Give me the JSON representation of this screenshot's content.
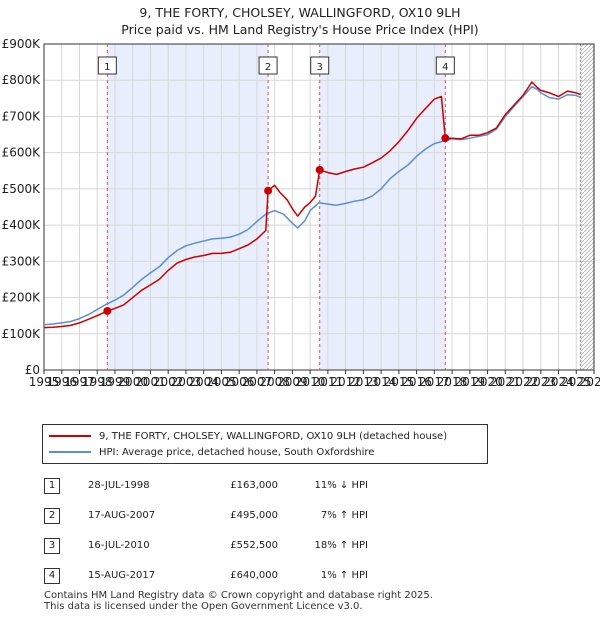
{
  "chart_data": {
    "type": "line",
    "title": "9, THE FORTY, CHOLSEY, WALLINGFORD, OX10 9LH",
    "subtitle": "Price paid vs. HM Land Registry's House Price Index (HPI)",
    "x_range": [
      1995,
      2026
    ],
    "y_range": [
      0,
      900000
    ],
    "y_ticks": [
      {
        "value": 0,
        "label": "£0"
      },
      {
        "value": 100000,
        "label": "£100K"
      },
      {
        "value": 200000,
        "label": "£200K"
      },
      {
        "value": 300000,
        "label": "£300K"
      },
      {
        "value": 400000,
        "label": "£400K"
      },
      {
        "value": 500000,
        "label": "£500K"
      },
      {
        "value": 600000,
        "label": "£600K"
      },
      {
        "value": 700000,
        "label": "£700K"
      },
      {
        "value": 800000,
        "label": "£800K"
      },
      {
        "value": 900000,
        "label": "£900K"
      }
    ],
    "x_ticks": [
      "1995",
      "1996",
      "1997",
      "1998",
      "1999",
      "2000",
      "2001",
      "2002",
      "2003",
      "2004",
      "2005",
      "2006",
      "2007",
      "2008",
      "2009",
      "2010",
      "2011",
      "2012",
      "2013",
      "2014",
      "2015",
      "2016",
      "2017",
      "2018",
      "2019",
      "2020",
      "2021",
      "2022",
      "2023",
      "2024",
      "2025",
      "2026"
    ],
    "grid": true,
    "shaded_ranges": [
      [
        1998.57,
        2007.63
      ],
      [
        2010.54,
        2017.62
      ]
    ],
    "data_end_year": 2025.25,
    "series": [
      {
        "name": "9, THE FORTY, CHOLSEY, WALLINGFORD, OX10 9LH (detached house)",
        "color": "#cc0000",
        "points": [
          [
            1995.0,
            117000
          ],
          [
            1995.5,
            118000
          ],
          [
            1996.0,
            120000
          ],
          [
            1996.5,
            123000
          ],
          [
            1997.0,
            130000
          ],
          [
            1997.5,
            140000
          ],
          [
            1998.0,
            150000
          ],
          [
            1998.57,
            163000
          ],
          [
            1999.0,
            170000
          ],
          [
            1999.5,
            180000
          ],
          [
            2000.0,
            200000
          ],
          [
            2000.5,
            220000
          ],
          [
            2001.0,
            235000
          ],
          [
            2001.5,
            250000
          ],
          [
            2002.0,
            275000
          ],
          [
            2002.5,
            295000
          ],
          [
            2003.0,
            305000
          ],
          [
            2003.5,
            312000
          ],
          [
            2004.0,
            316000
          ],
          [
            2004.5,
            322000
          ],
          [
            2005.0,
            322000
          ],
          [
            2005.5,
            325000
          ],
          [
            2006.0,
            335000
          ],
          [
            2006.5,
            345000
          ],
          [
            2007.0,
            362000
          ],
          [
            2007.5,
            385000
          ],
          [
            2007.63,
            495000
          ],
          [
            2008.0,
            510000
          ],
          [
            2008.3,
            490000
          ],
          [
            2008.7,
            470000
          ],
          [
            2009.0,
            445000
          ],
          [
            2009.3,
            425000
          ],
          [
            2009.7,
            450000
          ],
          [
            2010.0,
            462000
          ],
          [
            2010.3,
            480000
          ],
          [
            2010.54,
            552500
          ],
          [
            2011.0,
            545000
          ],
          [
            2011.5,
            540000
          ],
          [
            2012.0,
            548000
          ],
          [
            2012.5,
            555000
          ],
          [
            2013.0,
            560000
          ],
          [
            2013.5,
            572000
          ],
          [
            2014.0,
            585000
          ],
          [
            2014.5,
            605000
          ],
          [
            2015.0,
            630000
          ],
          [
            2015.5,
            660000
          ],
          [
            2016.0,
            695000
          ],
          [
            2016.5,
            722000
          ],
          [
            2017.0,
            748000
          ],
          [
            2017.4,
            755000
          ],
          [
            2017.62,
            640000
          ],
          [
            2018.0,
            640000
          ],
          [
            2018.5,
            638000
          ],
          [
            2019.0,
            648000
          ],
          [
            2019.5,
            648000
          ],
          [
            2020.0,
            655000
          ],
          [
            2020.5,
            668000
          ],
          [
            2021.0,
            705000
          ],
          [
            2021.5,
            732000
          ],
          [
            2022.0,
            758000
          ],
          [
            2022.5,
            795000
          ],
          [
            2022.8,
            780000
          ],
          [
            2023.0,
            772000
          ],
          [
            2023.5,
            765000
          ],
          [
            2024.0,
            755000
          ],
          [
            2024.5,
            770000
          ],
          [
            2025.0,
            765000
          ],
          [
            2025.25,
            760000
          ]
        ]
      },
      {
        "name": "HPI: Average price, detached house, South Oxfordshire",
        "color": "#5b8fd0",
        "points": [
          [
            1995.0,
            125000
          ],
          [
            1995.5,
            127000
          ],
          [
            1996.0,
            130000
          ],
          [
            1996.5,
            134000
          ],
          [
            1997.0,
            142000
          ],
          [
            1997.5,
            153000
          ],
          [
            1998.0,
            167000
          ],
          [
            1998.5,
            181000
          ],
          [
            1999.0,
            193000
          ],
          [
            1999.5,
            207000
          ],
          [
            2000.0,
            228000
          ],
          [
            2000.5,
            250000
          ],
          [
            2001.0,
            268000
          ],
          [
            2001.5,
            285000
          ],
          [
            2002.0,
            310000
          ],
          [
            2002.5,
            330000
          ],
          [
            2003.0,
            343000
          ],
          [
            2003.5,
            350000
          ],
          [
            2004.0,
            356000
          ],
          [
            2004.5,
            362000
          ],
          [
            2005.0,
            364000
          ],
          [
            2005.5,
            367000
          ],
          [
            2006.0,
            375000
          ],
          [
            2006.5,
            388000
          ],
          [
            2007.0,
            410000
          ],
          [
            2007.5,
            430000
          ],
          [
            2008.0,
            440000
          ],
          [
            2008.5,
            430000
          ],
          [
            2009.0,
            405000
          ],
          [
            2009.3,
            392000
          ],
          [
            2009.7,
            412000
          ],
          [
            2010.0,
            440000
          ],
          [
            2010.5,
            462000
          ],
          [
            2011.0,
            458000
          ],
          [
            2011.5,
            455000
          ],
          [
            2012.0,
            460000
          ],
          [
            2012.5,
            466000
          ],
          [
            2013.0,
            470000
          ],
          [
            2013.5,
            480000
          ],
          [
            2014.0,
            500000
          ],
          [
            2014.5,
            528000
          ],
          [
            2015.0,
            548000
          ],
          [
            2015.5,
            565000
          ],
          [
            2016.0,
            590000
          ],
          [
            2016.5,
            610000
          ],
          [
            2017.0,
            625000
          ],
          [
            2017.5,
            632000
          ],
          [
            2018.0,
            638000
          ],
          [
            2018.5,
            636000
          ],
          [
            2019.0,
            640000
          ],
          [
            2019.5,
            645000
          ],
          [
            2020.0,
            650000
          ],
          [
            2020.5,
            665000
          ],
          [
            2021.0,
            700000
          ],
          [
            2021.5,
            728000
          ],
          [
            2022.0,
            755000
          ],
          [
            2022.5,
            782000
          ],
          [
            2022.8,
            775000
          ],
          [
            2023.0,
            765000
          ],
          [
            2023.5,
            752000
          ],
          [
            2024.0,
            748000
          ],
          [
            2024.5,
            760000
          ],
          [
            2025.0,
            758000
          ],
          [
            2025.25,
            752000
          ]
        ]
      }
    ],
    "sales": [
      {
        "num": "1",
        "year": 1998.57,
        "price": 163000
      },
      {
        "num": "2",
        "year": 2007.63,
        "price": 495000
      },
      {
        "num": "3",
        "year": 2010.54,
        "price": 552500
      },
      {
        "num": "4",
        "year": 2017.62,
        "price": 640000
      }
    ]
  },
  "legend": {
    "property": "9, THE FORTY, CHOLSEY, WALLINGFORD, OX10 9LH (detached house)",
    "hpi": "HPI: Average price, detached house, South Oxfordshire"
  },
  "transactions": [
    {
      "num": "1",
      "date": "28-JUL-1998",
      "price": "£163,000",
      "hpi": "11% ↓ HPI"
    },
    {
      "num": "2",
      "date": "17-AUG-2007",
      "price": "£495,000",
      "hpi": "7% ↑ HPI"
    },
    {
      "num": "3",
      "date": "16-JUL-2010",
      "price": "£552,500",
      "hpi": "18% ↑ HPI"
    },
    {
      "num": "4",
      "date": "15-AUG-2017",
      "price": "£640,000",
      "hpi": "1% ↑ HPI"
    }
  ],
  "footer": {
    "line1": "Contains HM Land Registry data © Crown copyright and database right 2025.",
    "line2": "This data is licensed under the Open Government Licence v3.0."
  },
  "colors": {
    "property": "#cc0000",
    "hpi": "#5b8fd0",
    "shade": "#e8eefb",
    "grid": "#d8d8d8",
    "marker_line": "#e05050"
  }
}
